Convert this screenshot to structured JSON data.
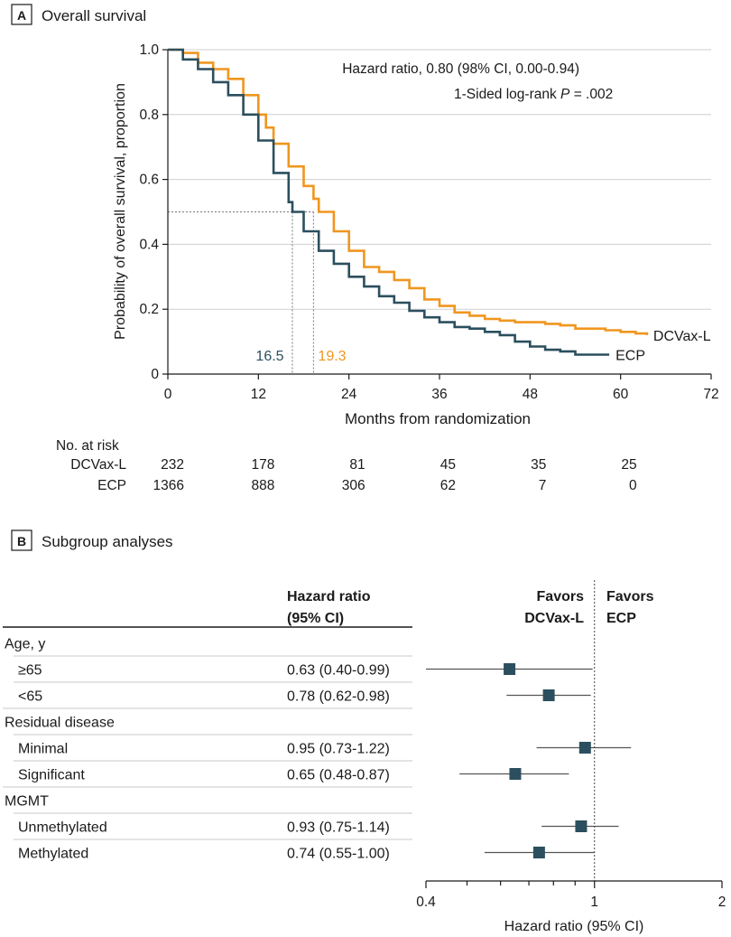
{
  "colors": {
    "dcvax": "#f0961e",
    "ecp": "#2b4f5e",
    "grid": "#cfcfcf",
    "text": "#1a1a1a"
  },
  "panel_a": {
    "letter": "A",
    "title": "Overall survival"
  },
  "panel_b": {
    "letter": "B",
    "title": "Subgroup analyses"
  },
  "chart_data": [
    {
      "type": "line",
      "title": "Overall survival",
      "xlabel": "Months from randomization",
      "ylabel": "Probability of overall survival, proportion",
      "xlim": [
        0,
        72
      ],
      "ylim": [
        0,
        1.0
      ],
      "xticks": [
        "0",
        "12",
        "24",
        "36",
        "48",
        "60",
        "72"
      ],
      "yticks": [
        "0",
        "0.2",
        "0.4",
        "0.6",
        "0.8",
        "1.0"
      ],
      "grid": "horizontal",
      "annotations": {
        "hr_text": "Hazard ratio, 0.80 (98% CI, 0.00-0.94)",
        "logrank_prefix": "1-Sided log-rank ",
        "logrank_p": "P",
        "logrank_suffix": " = .002",
        "median_ecp": "16.5",
        "median_dcvax": "19.3"
      },
      "median_line": {
        "y": 0.5,
        "ecp_x": 16.5,
        "dcvax_x": 19.3
      },
      "series": [
        {
          "name": "DCVax-L",
          "label": "DCVax-L",
          "x": [
            0,
            2,
            4,
            6,
            8,
            10,
            12,
            13,
            14,
            16,
            18,
            19.3,
            20,
            22,
            24,
            26,
            28,
            30,
            32,
            34,
            36,
            38,
            40,
            42,
            44,
            46,
            48,
            50,
            52,
            54,
            56,
            58,
            60,
            62,
            63.5
          ],
          "y": [
            1.0,
            0.99,
            0.96,
            0.94,
            0.91,
            0.86,
            0.8,
            0.76,
            0.71,
            0.64,
            0.58,
            0.54,
            0.5,
            0.44,
            0.38,
            0.33,
            0.315,
            0.29,
            0.265,
            0.23,
            0.21,
            0.19,
            0.18,
            0.17,
            0.165,
            0.16,
            0.16,
            0.155,
            0.15,
            0.14,
            0.14,
            0.135,
            0.13,
            0.125,
            0.12
          ]
        },
        {
          "name": "ECP",
          "label": "ECP",
          "x": [
            0,
            2,
            4,
            6,
            8,
            10,
            12,
            14,
            16,
            16.5,
            18,
            20,
            22,
            24,
            26,
            28,
            30,
            32,
            34,
            36,
            38,
            40,
            42,
            44,
            46,
            48,
            50,
            52,
            54,
            56,
            58.5
          ],
          "y": [
            1.0,
            0.97,
            0.94,
            0.9,
            0.86,
            0.8,
            0.72,
            0.62,
            0.53,
            0.5,
            0.44,
            0.38,
            0.34,
            0.3,
            0.27,
            0.24,
            0.22,
            0.195,
            0.175,
            0.16,
            0.145,
            0.14,
            0.13,
            0.12,
            0.1,
            0.085,
            0.075,
            0.07,
            0.06,
            0.06,
            0.06
          ]
        }
      ],
      "at_risk": {
        "title": "No. at risk",
        "rows": [
          {
            "label": "DCVax-L",
            "values": [
              "232",
              "178",
              "81",
              "45",
              "35",
              "25"
            ]
          },
          {
            "label": "ECP",
            "values": [
              "1366",
              "888",
              "306",
              "62",
              "7",
              "0"
            ]
          }
        ]
      }
    },
    {
      "type": "forest",
      "title": "Subgroup analyses",
      "xlabel": "Hazard ratio (95% CI)",
      "xscale": "log",
      "xlim": [
        0.4,
        2
      ],
      "xticks": [
        "0.4",
        "1",
        "2"
      ],
      "reference": 1,
      "header": {
        "col1": "Hazard ratio",
        "col2": "(95% CI)",
        "favors_left1": "Favors",
        "favors_left2": "DCVax-L",
        "favors_right1": "Favors",
        "favors_right2": "ECP"
      },
      "rows": [
        {
          "kind": "group",
          "label": "Age, y"
        },
        {
          "kind": "item",
          "label": "≥65",
          "hr_text": "0.63 (0.40-0.99)",
          "hr": 0.63,
          "lo": 0.4,
          "hi": 0.99
        },
        {
          "kind": "item",
          "label": "<65",
          "hr_text": "0.78 (0.62-0.98)",
          "hr": 0.78,
          "lo": 0.62,
          "hi": 0.98
        },
        {
          "kind": "group",
          "label": "Residual disease"
        },
        {
          "kind": "item",
          "label": "Minimal",
          "hr_text": "0.95 (0.73-1.22)",
          "hr": 0.95,
          "lo": 0.73,
          "hi": 1.22
        },
        {
          "kind": "item",
          "label": "Significant",
          "hr_text": "0.65 (0.48-0.87)",
          "hr": 0.65,
          "lo": 0.48,
          "hi": 0.87
        },
        {
          "kind": "group",
          "label": "MGMT"
        },
        {
          "kind": "item",
          "label": "Unmethylated",
          "hr_text": "0.93 (0.75-1.14)",
          "hr": 0.93,
          "lo": 0.75,
          "hi": 1.14
        },
        {
          "kind": "item",
          "label": "Methylated",
          "hr_text": "0.74 (0.55-1.00)",
          "hr": 0.74,
          "lo": 0.55,
          "hi": 1.0
        }
      ]
    }
  ]
}
